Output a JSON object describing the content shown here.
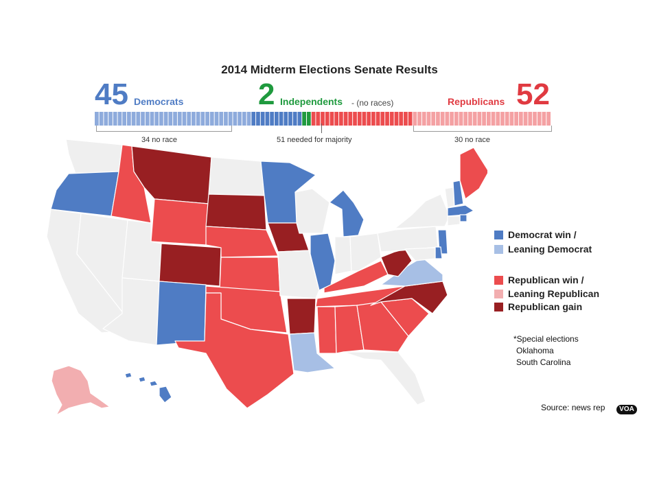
{
  "title": "2014 Midterm Elections Senate Results",
  "tally": {
    "democrats": {
      "count": "45",
      "label": "Democrats"
    },
    "independents": {
      "count": "2",
      "label": "Independents",
      "note": "- (no races)"
    },
    "republicans": {
      "count": "52",
      "label": "Republicans"
    }
  },
  "seat_bar": {
    "dem_no_race_label": "34 no race",
    "majority_label": "51 needed for majority",
    "rep_no_race_label": "30 no race"
  },
  "legend": {
    "dem_win": "Democrat win /",
    "lean_dem": "Leaning Democrat",
    "rep_win": "Republican win /",
    "lean_rep": "Leaning Republican",
    "rep_gain": "Republican gain"
  },
  "special": {
    "heading": "*Special elections",
    "states": [
      "Oklahoma",
      "South Carolina"
    ]
  },
  "source": "Source: news rep",
  "logo_text": "VOA",
  "colors": {
    "dem": "#4f7cc4",
    "dem_light": "#8eabdc",
    "lean_dem": "#a7bfe5",
    "ind": "#1f9a3e",
    "rep": "#ec4c4e",
    "rep_light": "#f4a1a3",
    "lean_rep": "#f2aeb0",
    "rep_gain": "#981f22",
    "no_race": "#efefef"
  }
}
